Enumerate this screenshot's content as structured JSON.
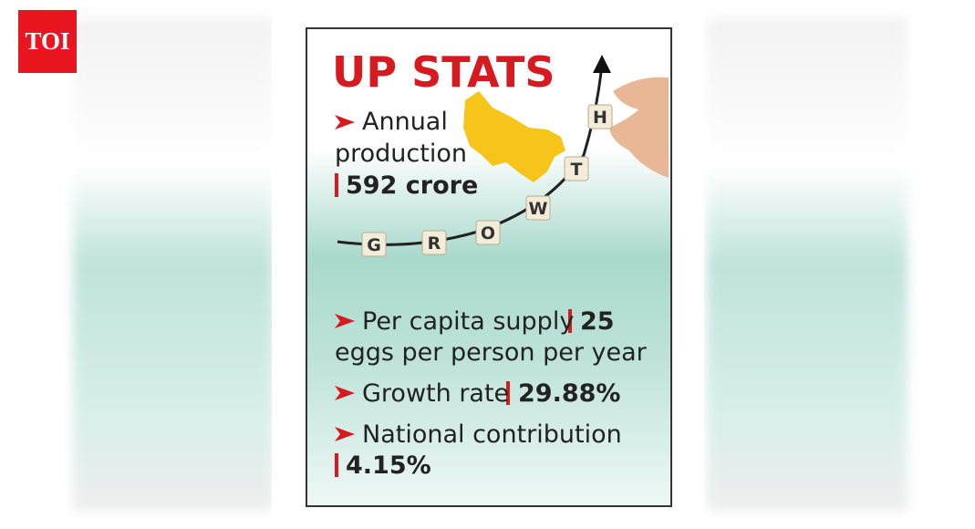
{
  "logo": "TOI",
  "infographic": {
    "title": "UP STATS",
    "stats": [
      {
        "label": [
          "Annual",
          "production"
        ],
        "value": "592 crore"
      },
      {
        "label": [
          "Per capita supply"
        ],
        "value": "25",
        "detail": "eggs per person per year"
      },
      {
        "label": [
          "Growth rate"
        ],
        "value": "29.88%"
      },
      {
        "label": [
          "National contribution"
        ],
        "value": "4.15%"
      }
    ],
    "growth_tiles": [
      "G",
      "R",
      "O",
      "W",
      "T",
      "H"
    ]
  }
}
